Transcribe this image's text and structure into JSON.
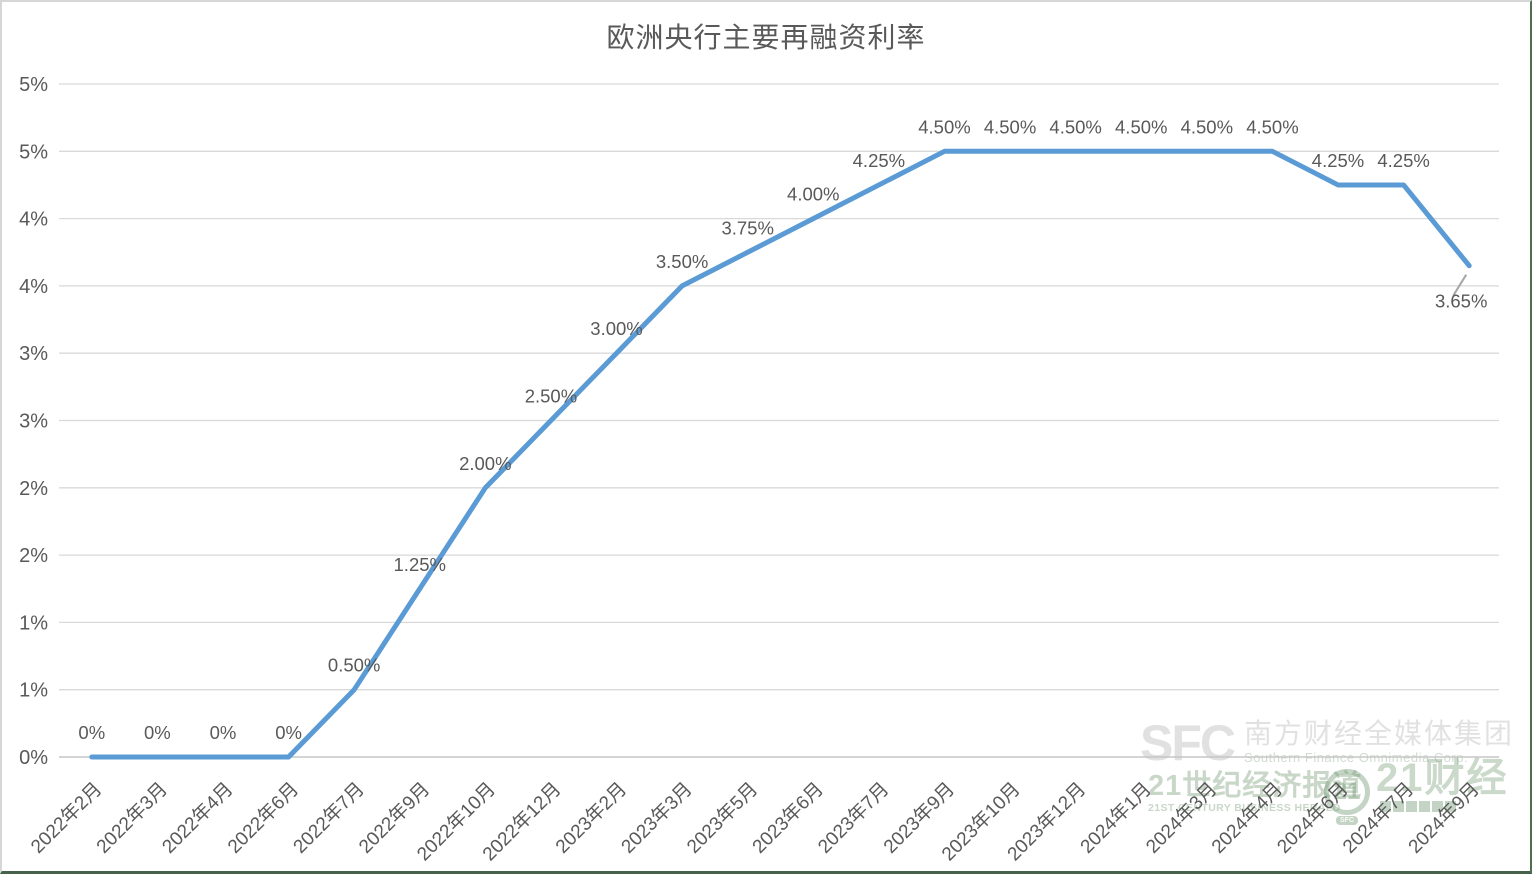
{
  "chart_data": {
    "type": "line",
    "title": "欧洲央行主要再融资利率",
    "categories": [
      "2022年2月",
      "2022年3月",
      "2022年4月",
      "2022年6月",
      "2022年7月",
      "2022年9月",
      "2022年10月",
      "2022年12月",
      "2023年2月",
      "2023年3月",
      "2023年5月",
      "2023年6月",
      "2023年7月",
      "2023年9月",
      "2023年10月",
      "2023年12月",
      "2024年1月",
      "2024年3月",
      "2024年4月",
      "2024年6月",
      "2024年7月",
      "2024年9月"
    ],
    "values": [
      0,
      0,
      0,
      0,
      0.5,
      1.25,
      2.0,
      2.5,
      3.0,
      3.5,
      3.75,
      4.0,
      4.25,
      4.5,
      4.5,
      4.5,
      4.5,
      4.5,
      4.5,
      4.25,
      4.25,
      3.65
    ],
    "point_labels": [
      "0%",
      "0%",
      "0%",
      "0%",
      "0.50%",
      "1.25%",
      "2.00%",
      "2.50%",
      "3.00%",
      "3.50%",
      "3.75%",
      "4.00%",
      "4.25%",
      "4.50%",
      "4.50%",
      "4.50%",
      "4.50%",
      "4.50%",
      "4.50%",
      "4.25%",
      "4.25%",
      "3.65%"
    ],
    "xlabel": "",
    "ylabel": "",
    "ylim": [
      0,
      5
    ],
    "y_tick_step": 0.5,
    "y_tick_labels_top_to_bottom": [
      "5%",
      "5%",
      "4%",
      "4%",
      "3%",
      "3%",
      "2%",
      "2%",
      "1%",
      "1%",
      "0%"
    ],
    "grid": true,
    "legend": "none",
    "colors": {
      "line": "#5B9BD5",
      "grid": "#D9D9D9",
      "baseline": "#C6C6C6",
      "axis_text": "#595959",
      "data_label": "#595959",
      "leader": "#A6A6A6"
    }
  },
  "watermark": {
    "sfc_logo": "SFC",
    "sfc_cn": "南方财经全媒体集团",
    "sfc_en": "Southern Finance Omnimedia Corp.",
    "herald_cn": "21世纪经济报道",
    "herald_en": "21ST CENTURY BUSINESS HERALD",
    "badge_21": "21",
    "badge_sfc": "SFC",
    "fin_21": "21财经"
  }
}
